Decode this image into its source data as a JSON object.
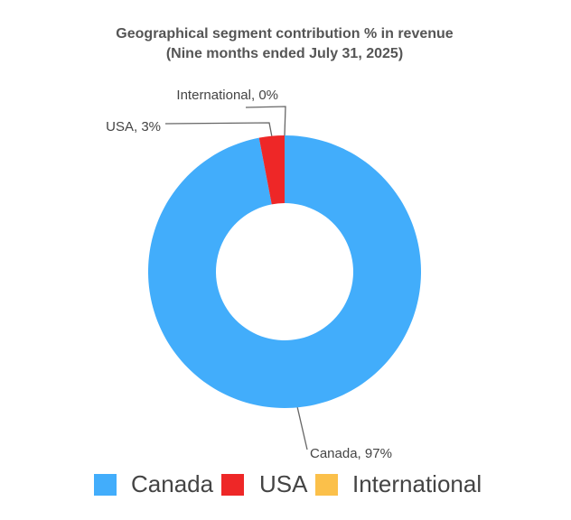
{
  "chart_data": {
    "type": "donut",
    "title": "Geographical segment contribution % in revenue",
    "subtitle": "(Nine months ended July 31, 2025)",
    "categories": [
      "Canada",
      "USA",
      "International"
    ],
    "values": [
      97,
      3,
      0
    ],
    "value_labels": [
      "Canada, 97%",
      "USA, 3%",
      "International, 0%"
    ],
    "colors": [
      "#42adfb",
      "#ee2727",
      "#fbc04a"
    ],
    "legend": "bottom"
  }
}
